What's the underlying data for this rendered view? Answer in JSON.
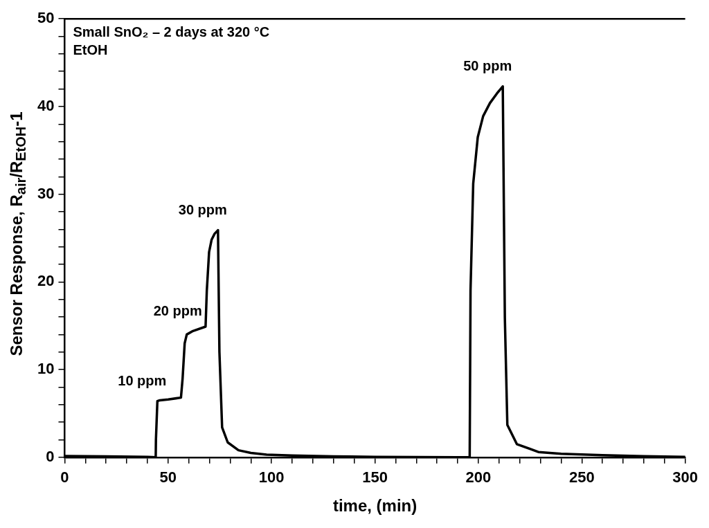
{
  "chart_data": {
    "type": "line",
    "xlabel": "time, (min)",
    "ylabel": "Sensor Response, R$_{air}$/R$_{EtOH}$-1",
    "annotations": [
      "Small SnO₂ – 2 days at 320 °C",
      "EtOH",
      {
        "text": "10 ppm",
        "x": 44.8,
        "y": 6.4
      },
      {
        "text": "20 ppm",
        "x": 62,
        "y": 14.4
      },
      {
        "text": "30 ppm",
        "x": 74.1,
        "y": 25.9
      },
      {
        "text": "50 ppm",
        "x": 211.8,
        "y": 42.3
      }
    ],
    "x": [
      0,
      20,
      40,
      44,
      44.1,
      44.8,
      46,
      50,
      56.2,
      57,
      58,
      59,
      62,
      68.1,
      68.7,
      69.8,
      71,
      72.5,
      74.1,
      74.8,
      76.1,
      78.8,
      84,
      90,
      97.6,
      110,
      130,
      150,
      170,
      190,
      195.8,
      196.2,
      197.5,
      199.7,
      202.3,
      205.6,
      209,
      211.8,
      212.8,
      214,
      218.6,
      229,
      240,
      260,
      280,
      300
    ],
    "series": [
      {
        "color": "#000000",
        "values": [
          0.15,
          0.1,
          0.05,
          0,
          2,
          6.4,
          6.5,
          6.6,
          6.8,
          9,
          13,
          14,
          14.4,
          14.9,
          19,
          23.4,
          24.8,
          25.5,
          25.9,
          12,
          3.4,
          1.7,
          0.8,
          0.5,
          0.3,
          0.2,
          0.1,
          0.05,
          0.03,
          0,
          0,
          19,
          31.2,
          36.5,
          38.9,
          40.4,
          41.5,
          42.3,
          15.9,
          3.7,
          1.5,
          0.6,
          0.4,
          0.25,
          0.12,
          0.05
        ]
      }
    ],
    "xlim": [
      0,
      300
    ],
    "xticks": [
      0,
      {
        "value": 10,
        "label": null
      },
      {
        "value": 20,
        "label": null
      },
      {
        "value": 30,
        "label": null
      },
      {
        "value": 40,
        "label": null
      },
      50,
      {
        "value": 60,
        "label": null
      },
      {
        "value": 70,
        "label": null
      },
      {
        "value": 80,
        "label": null
      },
      {
        "value": 90,
        "label": null
      },
      100,
      {
        "value": 110,
        "label": null
      },
      {
        "value": 120,
        "label": null
      },
      {
        "value": 130,
        "label": null
      },
      {
        "value": 140,
        "label": null
      },
      150,
      {
        "value": 160,
        "label": null
      },
      {
        "value": 170,
        "label": null
      },
      {
        "value": 180,
        "label": null
      },
      {
        "value": 190,
        "label": null
      },
      200,
      {
        "value": 210,
        "label": null
      },
      {
        "value": 220,
        "label": null
      },
      {
        "value": 230,
        "label": null
      },
      {
        "value": 240,
        "label": null
      },
      250,
      {
        "value": 260,
        "label": null
      },
      {
        "value": 270,
        "label": null
      },
      {
        "value": 280,
        "label": null
      },
      {
        "value": 290,
        "label": null
      },
      300
    ],
    "ylim": [
      0,
      50
    ],
    "yticks": [
      0,
      {
        "value": 2,
        "label": null
      },
      {
        "value": 4,
        "label": null
      },
      {
        "value": 6,
        "label": null
      },
      {
        "value": 8,
        "label": null
      },
      10,
      {
        "value": 12,
        "label": null
      },
      {
        "value": 14,
        "label": null
      },
      {
        "value": 16,
        "label": null
      },
      {
        "value": 18,
        "label": null
      },
      20,
      {
        "value": 22,
        "label": null
      },
      {
        "value": 24,
        "label": null
      },
      {
        "value": 26,
        "label": null
      },
      {
        "value": 28,
        "label": null
      },
      30,
      {
        "value": 32,
        "label": null
      },
      {
        "value": 34,
        "label": null
      },
      {
        "value": 36,
        "label": null
      },
      {
        "value": 38,
        "label": null
      },
      40,
      {
        "value": 42,
        "label": null
      },
      {
        "value": 44,
        "label": null
      },
      {
        "value": 46,
        "label": null
      },
      {
        "value": 48,
        "label": null
      },
      50
    ],
    "grid": false,
    "legend": false,
    "marker": "none",
    "line_style": "solid"
  }
}
